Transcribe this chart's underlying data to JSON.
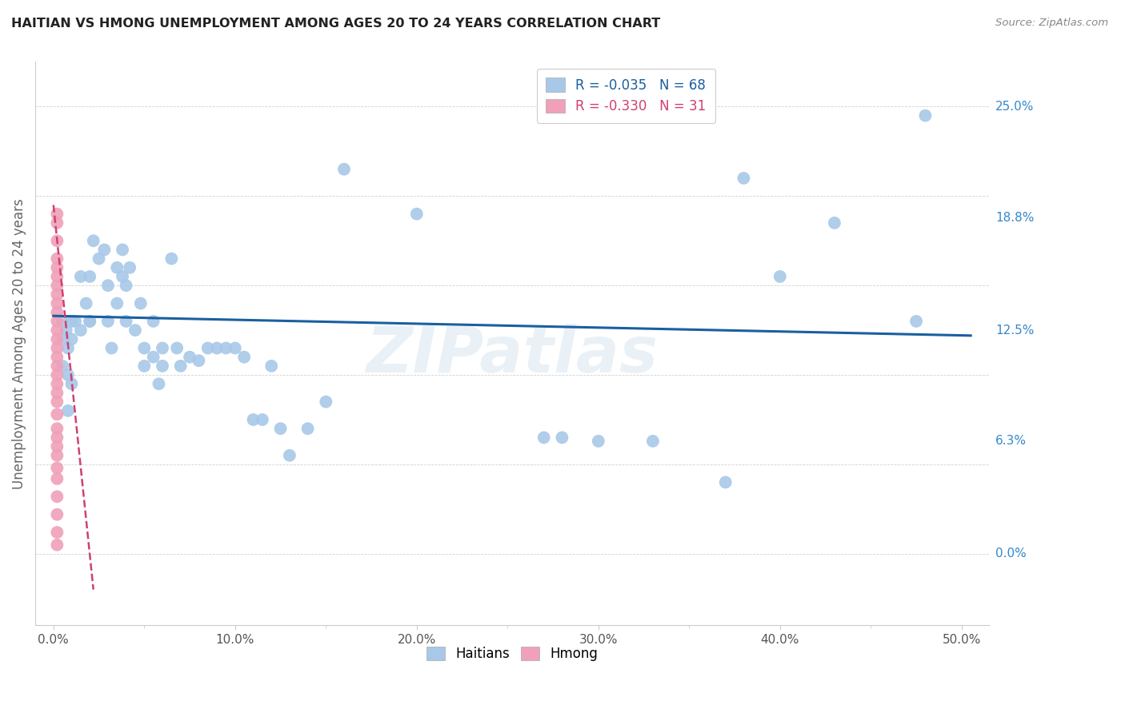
{
  "title": "HAITIAN VS HMONG UNEMPLOYMENT AMONG AGES 20 TO 24 YEARS CORRELATION CHART",
  "source": "Source: ZipAtlas.com",
  "ylabel": "Unemployment Among Ages 20 to 24 years",
  "x_tick_vals": [
    0.0,
    0.1,
    0.2,
    0.3,
    0.4,
    0.5
  ],
  "x_tick_labels": [
    "0.0%",
    "10.0%",
    "20.0%",
    "30.0%",
    "40.0%",
    "50.0%"
  ],
  "y_tick_vals": [
    0.0,
    0.063,
    0.125,
    0.188,
    0.25
  ],
  "y_tick_labels": [
    "0.0%",
    "6.3%",
    "12.5%",
    "18.8%",
    "25.0%"
  ],
  "xlim": [
    -0.01,
    0.515
  ],
  "ylim": [
    -0.04,
    0.275
  ],
  "haitian_R": "-0.035",
  "haitian_N": "68",
  "hmong_R": "-0.330",
  "hmong_N": "31",
  "haitian_color": "#a8c8e8",
  "hmong_color": "#f0a0b8",
  "trendline_haitian_color": "#1a5fa0",
  "trendline_hmong_color": "#d04070",
  "watermark": "ZIPatlas",
  "haitian_x": [
    0.005,
    0.005,
    0.005,
    0.007,
    0.008,
    0.008,
    0.008,
    0.01,
    0.01,
    0.01,
    0.012,
    0.015,
    0.015,
    0.018,
    0.02,
    0.02,
    0.02,
    0.022,
    0.025,
    0.028,
    0.03,
    0.03,
    0.032,
    0.035,
    0.035,
    0.038,
    0.038,
    0.04,
    0.04,
    0.042,
    0.045,
    0.048,
    0.05,
    0.05,
    0.055,
    0.055,
    0.058,
    0.06,
    0.06,
    0.065,
    0.068,
    0.07,
    0.075,
    0.08,
    0.085,
    0.09,
    0.095,
    0.1,
    0.105,
    0.11,
    0.115,
    0.12,
    0.125,
    0.13,
    0.14,
    0.15,
    0.16,
    0.2,
    0.27,
    0.28,
    0.3,
    0.33,
    0.37,
    0.4,
    0.43,
    0.475,
    0.38,
    0.48
  ],
  "haitian_y": [
    0.13,
    0.12,
    0.105,
    0.125,
    0.08,
    0.1,
    0.115,
    0.13,
    0.12,
    0.095,
    0.13,
    0.125,
    0.155,
    0.14,
    0.13,
    0.155,
    0.13,
    0.175,
    0.165,
    0.17,
    0.15,
    0.13,
    0.115,
    0.16,
    0.14,
    0.155,
    0.17,
    0.15,
    0.13,
    0.16,
    0.125,
    0.14,
    0.115,
    0.105,
    0.11,
    0.13,
    0.095,
    0.115,
    0.105,
    0.165,
    0.115,
    0.105,
    0.11,
    0.108,
    0.115,
    0.115,
    0.115,
    0.115,
    0.11,
    0.075,
    0.075,
    0.105,
    0.07,
    0.055,
    0.07,
    0.085,
    0.215,
    0.19,
    0.065,
    0.065,
    0.063,
    0.063,
    0.04,
    0.155,
    0.185,
    0.13,
    0.21,
    0.245
  ],
  "hmong_x": [
    0.002,
    0.002,
    0.002,
    0.002,
    0.002,
    0.002,
    0.002,
    0.002,
    0.002,
    0.002,
    0.002,
    0.002,
    0.002,
    0.002,
    0.002,
    0.002,
    0.002,
    0.002,
    0.002,
    0.002,
    0.002,
    0.002,
    0.002,
    0.002,
    0.002,
    0.002,
    0.002,
    0.002,
    0.002,
    0.002,
    0.002
  ],
  "hmong_y": [
    0.19,
    0.185,
    0.175,
    0.165,
    0.16,
    0.155,
    0.15,
    0.145,
    0.14,
    0.135,
    0.13,
    0.125,
    0.12,
    0.115,
    0.11,
    0.105,
    0.1,
    0.095,
    0.09,
    0.085,
    0.078,
    0.07,
    0.065,
    0.06,
    0.055,
    0.048,
    0.042,
    0.032,
    0.022,
    0.012,
    0.005
  ],
  "hmong_trend_x0": 0.0,
  "hmong_trend_y0": 0.195,
  "hmong_trend_x1": 0.022,
  "hmong_trend_y1": -0.02,
  "haitian_trend_y_at_x0": 0.133,
  "haitian_trend_y_at_x_end": 0.122
}
